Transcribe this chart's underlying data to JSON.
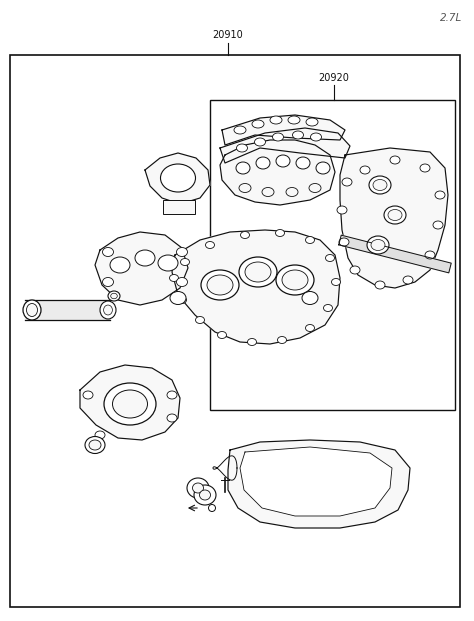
{
  "title": "2.7L",
  "label_20910": "20910",
  "label_20920": "20920",
  "bg_color": "#ffffff",
  "border_color": "#111111",
  "line_color": "#111111",
  "text_color": "#333333",
  "fig_width": 4.74,
  "fig_height": 6.21,
  "dpi": 100
}
